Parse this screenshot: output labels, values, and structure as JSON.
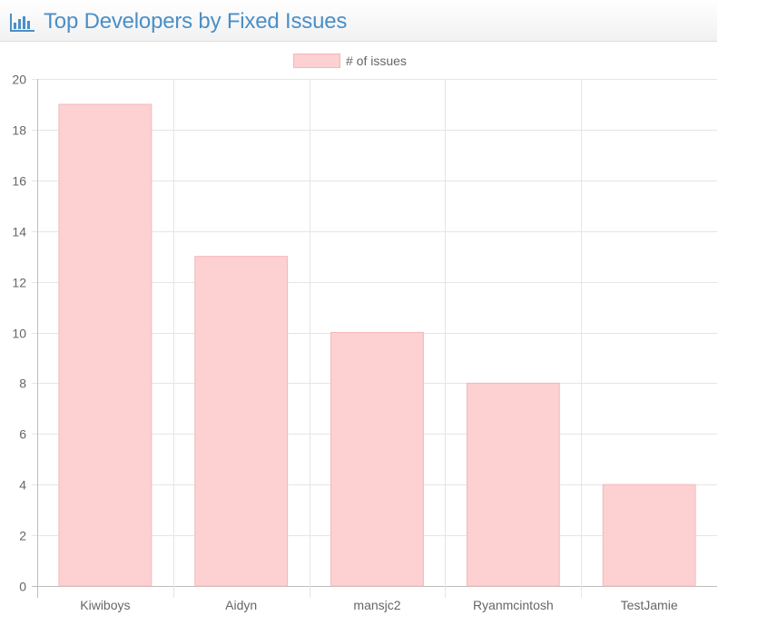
{
  "header": {
    "title": "Top Developers by Fixed Issues",
    "icon": "bar-chart-icon"
  },
  "colors": {
    "title": "#4a8fc8",
    "bar_fill": "#fdd0d1",
    "bar_stroke": "#f6b7b8",
    "grid": "#e5e5e5",
    "text": "#666666"
  },
  "chart_data": {
    "type": "bar",
    "title": "",
    "xlabel": "",
    "ylabel": "",
    "categories": [
      "Kiwiboys",
      "Aidyn",
      "mansjc2",
      "Ryanmcintosh",
      "TestJamie"
    ],
    "series": [
      {
        "name": "# of issues",
        "values": [
          19,
          13,
          10,
          8,
          4
        ]
      }
    ],
    "ylim": [
      0,
      20
    ],
    "yticks": [
      0,
      2,
      4,
      6,
      8,
      10,
      12,
      14,
      16,
      18,
      20
    ],
    "grid": true,
    "legend_position": "top-center"
  }
}
